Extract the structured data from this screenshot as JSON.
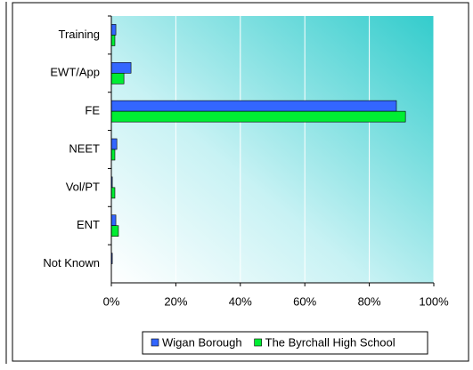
{
  "chart_data": {
    "type": "hbar",
    "categories": [
      "Training",
      "EWT/App",
      "FE",
      "NEET",
      "Vol/PT",
      "ENT",
      "Not Known"
    ],
    "series": [
      {
        "name": "Wigan Borough",
        "color": "#3366ff",
        "values": [
          1.4,
          6.1,
          88.4,
          1.7,
          0.3,
          1.4,
          0.3
        ]
      },
      {
        "name": "The Byrchall High School",
        "color": "#00ee33",
        "values": [
          1.1,
          3.9,
          91.2,
          1.1,
          1.1,
          2.2,
          0
        ]
      }
    ],
    "xlim": [
      0,
      100
    ],
    "xticks": [
      {
        "value": 0,
        "label": "0%"
      },
      {
        "value": 20,
        "label": "20%"
      },
      {
        "value": 40,
        "label": "40%"
      },
      {
        "value": 60,
        "label": "60%"
      },
      {
        "value": 80,
        "label": "80%"
      },
      {
        "value": 100,
        "label": "100%"
      }
    ],
    "grid": true
  }
}
